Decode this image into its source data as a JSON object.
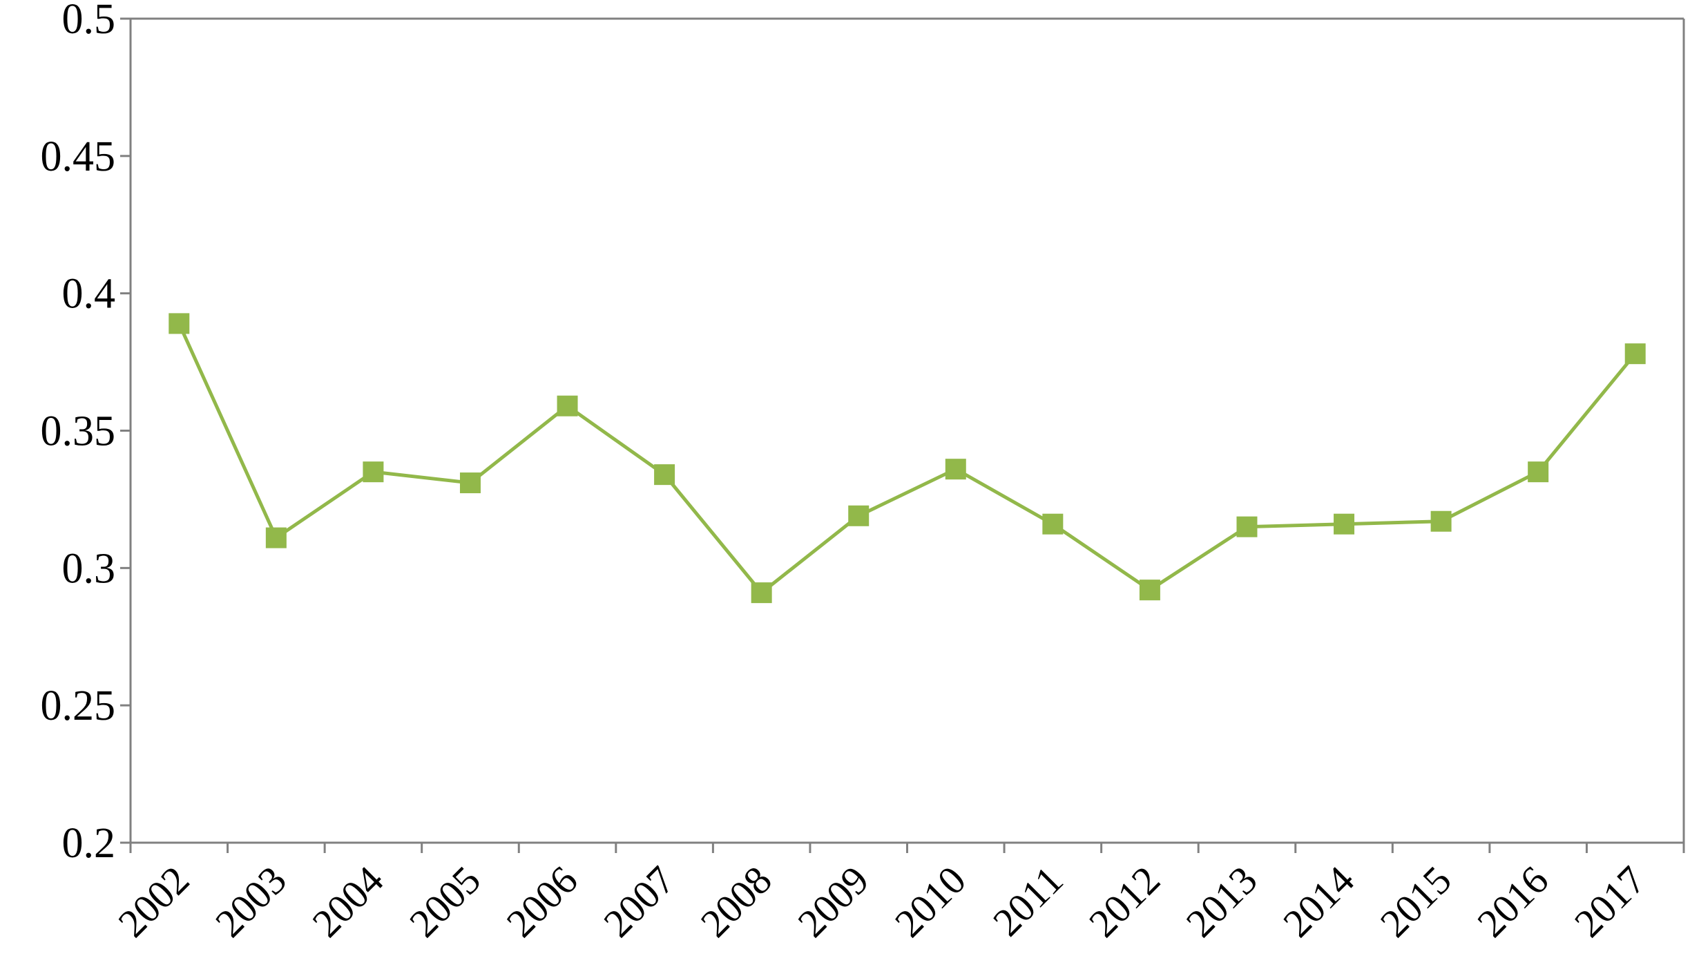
{
  "chart_data": {
    "type": "line",
    "title": "",
    "xlabel": "",
    "ylabel": "",
    "categories": [
      "2002",
      "2003",
      "2004",
      "2005",
      "2006",
      "2007",
      "2008",
      "2009",
      "2010",
      "2011",
      "2012",
      "2013",
      "2014",
      "2015",
      "2016",
      "2017"
    ],
    "series": [
      {
        "values": [
          0.389,
          0.311,
          0.335,
          0.331,
          0.359,
          0.334,
          0.291,
          0.319,
          0.336,
          0.316,
          0.292,
          0.315,
          0.316,
          0.317,
          0.335,
          0.378
        ],
        "color": "#92B84A",
        "marker": "square"
      }
    ],
    "ylim": [
      0.2,
      0.5
    ],
    "yticks": [
      "0.2",
      "0.25",
      "0.3",
      "0.35",
      "0.4",
      "0.45",
      "0.5"
    ],
    "grid": false,
    "legend": "none"
  }
}
